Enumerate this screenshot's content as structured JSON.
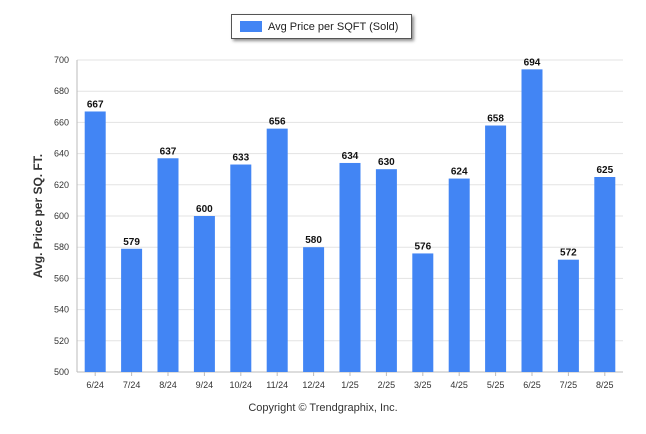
{
  "chart_data": {
    "type": "bar",
    "ylabel": "Avg. Price per SQ. FT.",
    "categories": [
      "6/24",
      "7/24",
      "8/24",
      "9/24",
      "10/24",
      "11/24",
      "12/24",
      "1/25",
      "2/25",
      "3/25",
      "4/25",
      "5/25",
      "6/25",
      "7/25",
      "8/25"
    ],
    "series": [
      {
        "name": "Avg Price per SQFT (Sold)",
        "values": [
          667,
          579,
          637,
          600,
          633,
          656,
          580,
          634,
          630,
          576,
          624,
          658,
          694,
          572,
          625
        ]
      }
    ],
    "ylim": [
      500,
      700
    ],
    "yticks": [
      500,
      520,
      540,
      560,
      580,
      600,
      620,
      640,
      660,
      680,
      700
    ],
    "grid": true,
    "legend_position": "top-center",
    "bar_color": "#4285f4"
  },
  "footer": {
    "copyright": "Copyright © Trendgraphix, Inc."
  }
}
